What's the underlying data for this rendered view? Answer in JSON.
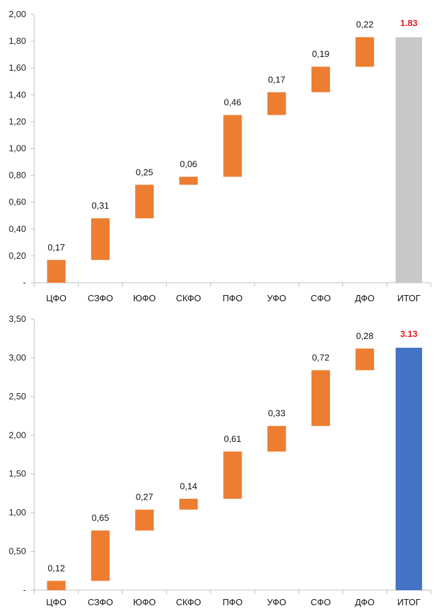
{
  "chart_data": [
    {
      "type": "bar",
      "subtype": "waterfall",
      "categories": [
        "ЦФО",
        "СЗФО",
        "ЮФО",
        "СКФО",
        "ПФО",
        "УФО",
        "СФО",
        "ДФО",
        "ИТОГ"
      ],
      "values": [
        0.17,
        0.31,
        0.25,
        0.06,
        0.46,
        0.17,
        0.19,
        0.22,
        1.83
      ],
      "labels": [
        "0,17",
        "0,31",
        "0,25",
        "0,06",
        "0,46",
        "0,17",
        "0,19",
        "0,22",
        "1.83"
      ],
      "ylim": [
        0,
        2.0
      ],
      "yticks": [
        0,
        0.2,
        0.4,
        0.6,
        0.8,
        1.0,
        1.2,
        1.4,
        1.6,
        1.8,
        2.0
      ],
      "ytick_labels": [
        "-",
        "0,20",
        "0,40",
        "0,60",
        "0,80",
        "1,00",
        "1,20",
        "1,40",
        "1,60",
        "1,80",
        "2,00"
      ],
      "colors": {
        "step": "#ED7D31",
        "total": "#C8C8C8",
        "total_label": "#E31E24"
      },
      "grid": false,
      "title": "",
      "xlabel": "",
      "ylabel": ""
    },
    {
      "type": "bar",
      "subtype": "waterfall",
      "categories": [
        "ЦФО",
        "СЗФО",
        "ЮФО",
        "СКФО",
        "ПФО",
        "УФО",
        "СФО",
        "ДФО",
        "ИТОГ"
      ],
      "values": [
        0.12,
        0.65,
        0.27,
        0.14,
        0.61,
        0.33,
        0.72,
        0.28,
        3.13
      ],
      "labels": [
        "0,12",
        "0,65",
        "0,27",
        "0,14",
        "0,61",
        "0,33",
        "0,72",
        "0,28",
        "3.13"
      ],
      "ylim": [
        0,
        3.5
      ],
      "yticks": [
        0,
        0.5,
        1.0,
        1.5,
        2.0,
        2.5,
        3.0,
        3.5
      ],
      "ytick_labels": [
        "-",
        "0,50",
        "1,00",
        "1,50",
        "2,00",
        "2,50",
        "3,00",
        "3,50"
      ],
      "colors": {
        "step": "#ED7D31",
        "total": "#4472C4",
        "total_label": "#E31E24"
      },
      "grid": false,
      "title": "",
      "xlabel": "",
      "ylabel": ""
    }
  ]
}
